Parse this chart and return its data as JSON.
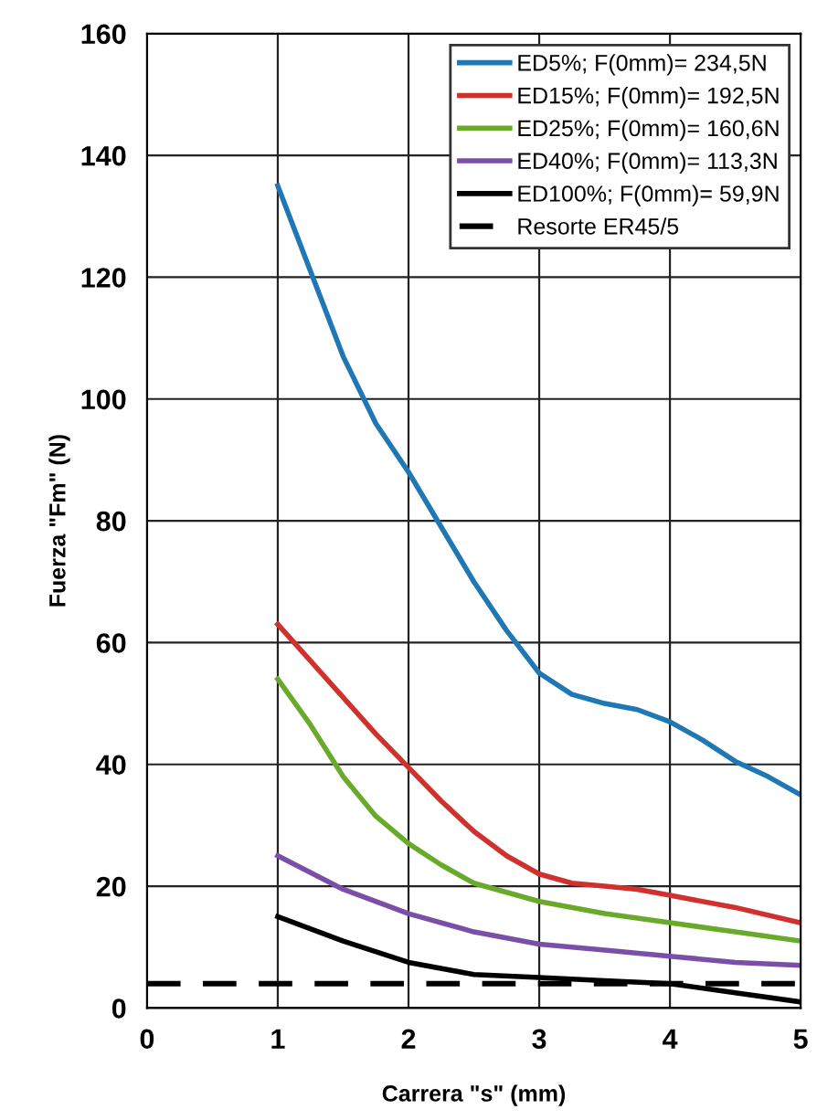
{
  "chart_data": {
    "type": "line",
    "xlabel": "Carrera \"s\" (mm)",
    "ylabel": "Fuerza \"Fm\" (N)",
    "xlim": [
      0,
      5
    ],
    "ylim": [
      0,
      160
    ],
    "xticks": [
      0,
      1,
      2,
      3,
      4,
      5
    ],
    "yticks": [
      0,
      20,
      40,
      60,
      80,
      100,
      120,
      140,
      160
    ],
    "grid": true,
    "legend": "top right",
    "marker": "none",
    "series": [
      {
        "name": "ED5%; F(0mm)= 234,5N",
        "color": "#1f77b4",
        "x": [
          1,
          1.25,
          1.5,
          1.75,
          2,
          2.25,
          2.5,
          2.75,
          3,
          3.25,
          3.5,
          3.75,
          4,
          4.25,
          4.5,
          4.75,
          5
        ],
        "values": [
          135,
          121,
          107,
          96,
          88,
          79,
          70,
          62,
          55,
          51.5,
          50,
          49,
          47,
          44,
          40.5,
          38,
          35
        ]
      },
      {
        "name": "ED15%; F(0mm)= 192,5N",
        "color": "#d0312d",
        "x": [
          1,
          1.25,
          1.5,
          1.75,
          2,
          2.25,
          2.5,
          2.75,
          3,
          3.25,
          3.5,
          3.75,
          4,
          4.5,
          5
        ],
        "values": [
          63,
          57,
          51,
          45,
          39.5,
          34,
          29,
          25,
          22,
          20.5,
          20,
          19.5,
          18.5,
          16.5,
          14
        ]
      },
      {
        "name": "ED25%; F(0mm)= 160,6N",
        "color": "#6aaa2a",
        "x": [
          1,
          1.25,
          1.5,
          1.75,
          2,
          2.25,
          2.5,
          2.75,
          3,
          3.5,
          4,
          4.5,
          5
        ],
        "values": [
          54,
          46.5,
          38,
          31.5,
          27,
          23.5,
          20.5,
          19,
          17.5,
          15.5,
          14,
          12.5,
          11
        ]
      },
      {
        "name": "ED40%; F(0mm)= 113,3N",
        "color": "#7b4fa8",
        "x": [
          1,
          1.5,
          2,
          2.5,
          3,
          3.5,
          4,
          4.5,
          5
        ],
        "values": [
          25,
          19.5,
          15.5,
          12.5,
          10.5,
          9.5,
          8.5,
          7.5,
          7
        ]
      },
      {
        "name": "ED100%; F(0mm)= 59,9N",
        "color": "#000000",
        "x": [
          1,
          1.5,
          2,
          2.5,
          3,
          3.5,
          4,
          4.5,
          5
        ],
        "values": [
          15,
          11,
          7.5,
          5.5,
          5,
          4.5,
          4,
          2.5,
          1
        ]
      },
      {
        "name": "Resorte ER45/5",
        "color": "#000000",
        "line_style": "dashed",
        "x": [
          0,
          5
        ],
        "values": [
          4,
          4
        ]
      }
    ]
  }
}
